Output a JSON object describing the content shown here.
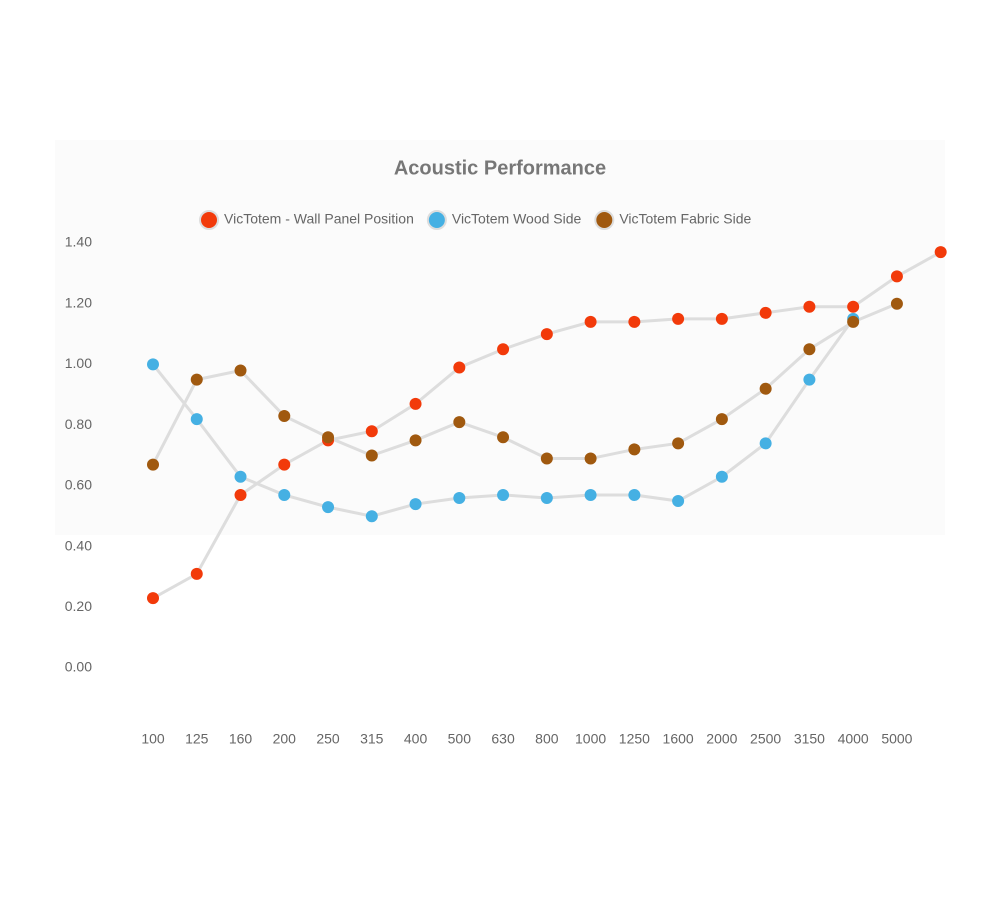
{
  "chart_data": {
    "type": "line",
    "title": "Acoustic Performance",
    "categories": [
      "100",
      "125",
      "160",
      "200",
      "250",
      "315",
      "400",
      "500",
      "630",
      "800",
      "1000",
      "1250",
      "1600",
      "2000",
      "2500",
      "3150",
      "4000",
      "5000",
      null
    ],
    "series": [
      {
        "name": "VicTotem - Wall Panel Position",
        "color": "#f23a0a",
        "values": [
          0.23,
          0.31,
          0.57,
          0.67,
          0.75,
          0.78,
          0.87,
          0.99,
          1.05,
          1.1,
          1.14,
          1.14,
          1.15,
          1.15,
          1.17,
          1.19,
          1.19,
          1.29,
          1.37
        ]
      },
      {
        "name": "VicTotem Wood Side",
        "color": "#45b0e3",
        "values": [
          1.0,
          0.82,
          0.63,
          0.57,
          0.53,
          0.5,
          0.54,
          0.56,
          0.57,
          0.56,
          0.57,
          0.57,
          0.55,
          0.63,
          0.74,
          0.95,
          1.15,
          null,
          null
        ]
      },
      {
        "name": "VicTotem Fabric Side",
        "color": "#a0590f",
        "values": [
          0.67,
          0.95,
          0.98,
          0.83,
          0.76,
          0.7,
          0.75,
          0.81,
          0.76,
          0.69,
          0.69,
          0.72,
          0.74,
          0.82,
          0.92,
          1.05,
          1.14,
          1.2,
          null
        ]
      }
    ],
    "ylim": [
      0,
      1.4
    ],
    "yticks": [
      {
        "value": 0,
        "label": "0.00"
      },
      {
        "value": 0.2,
        "label": "0.20"
      },
      {
        "value": 0.4,
        "label": "0.40"
      },
      {
        "value": 0.6,
        "label": "0.60"
      },
      {
        "value": 0.8,
        "label": "0.80"
      },
      {
        "value": 1.0,
        "label": "1.00"
      },
      {
        "value": 1.2,
        "label": "1.20"
      },
      {
        "value": 1.4,
        "label": "1.40"
      }
    ],
    "line_color": "#dddddd"
  }
}
